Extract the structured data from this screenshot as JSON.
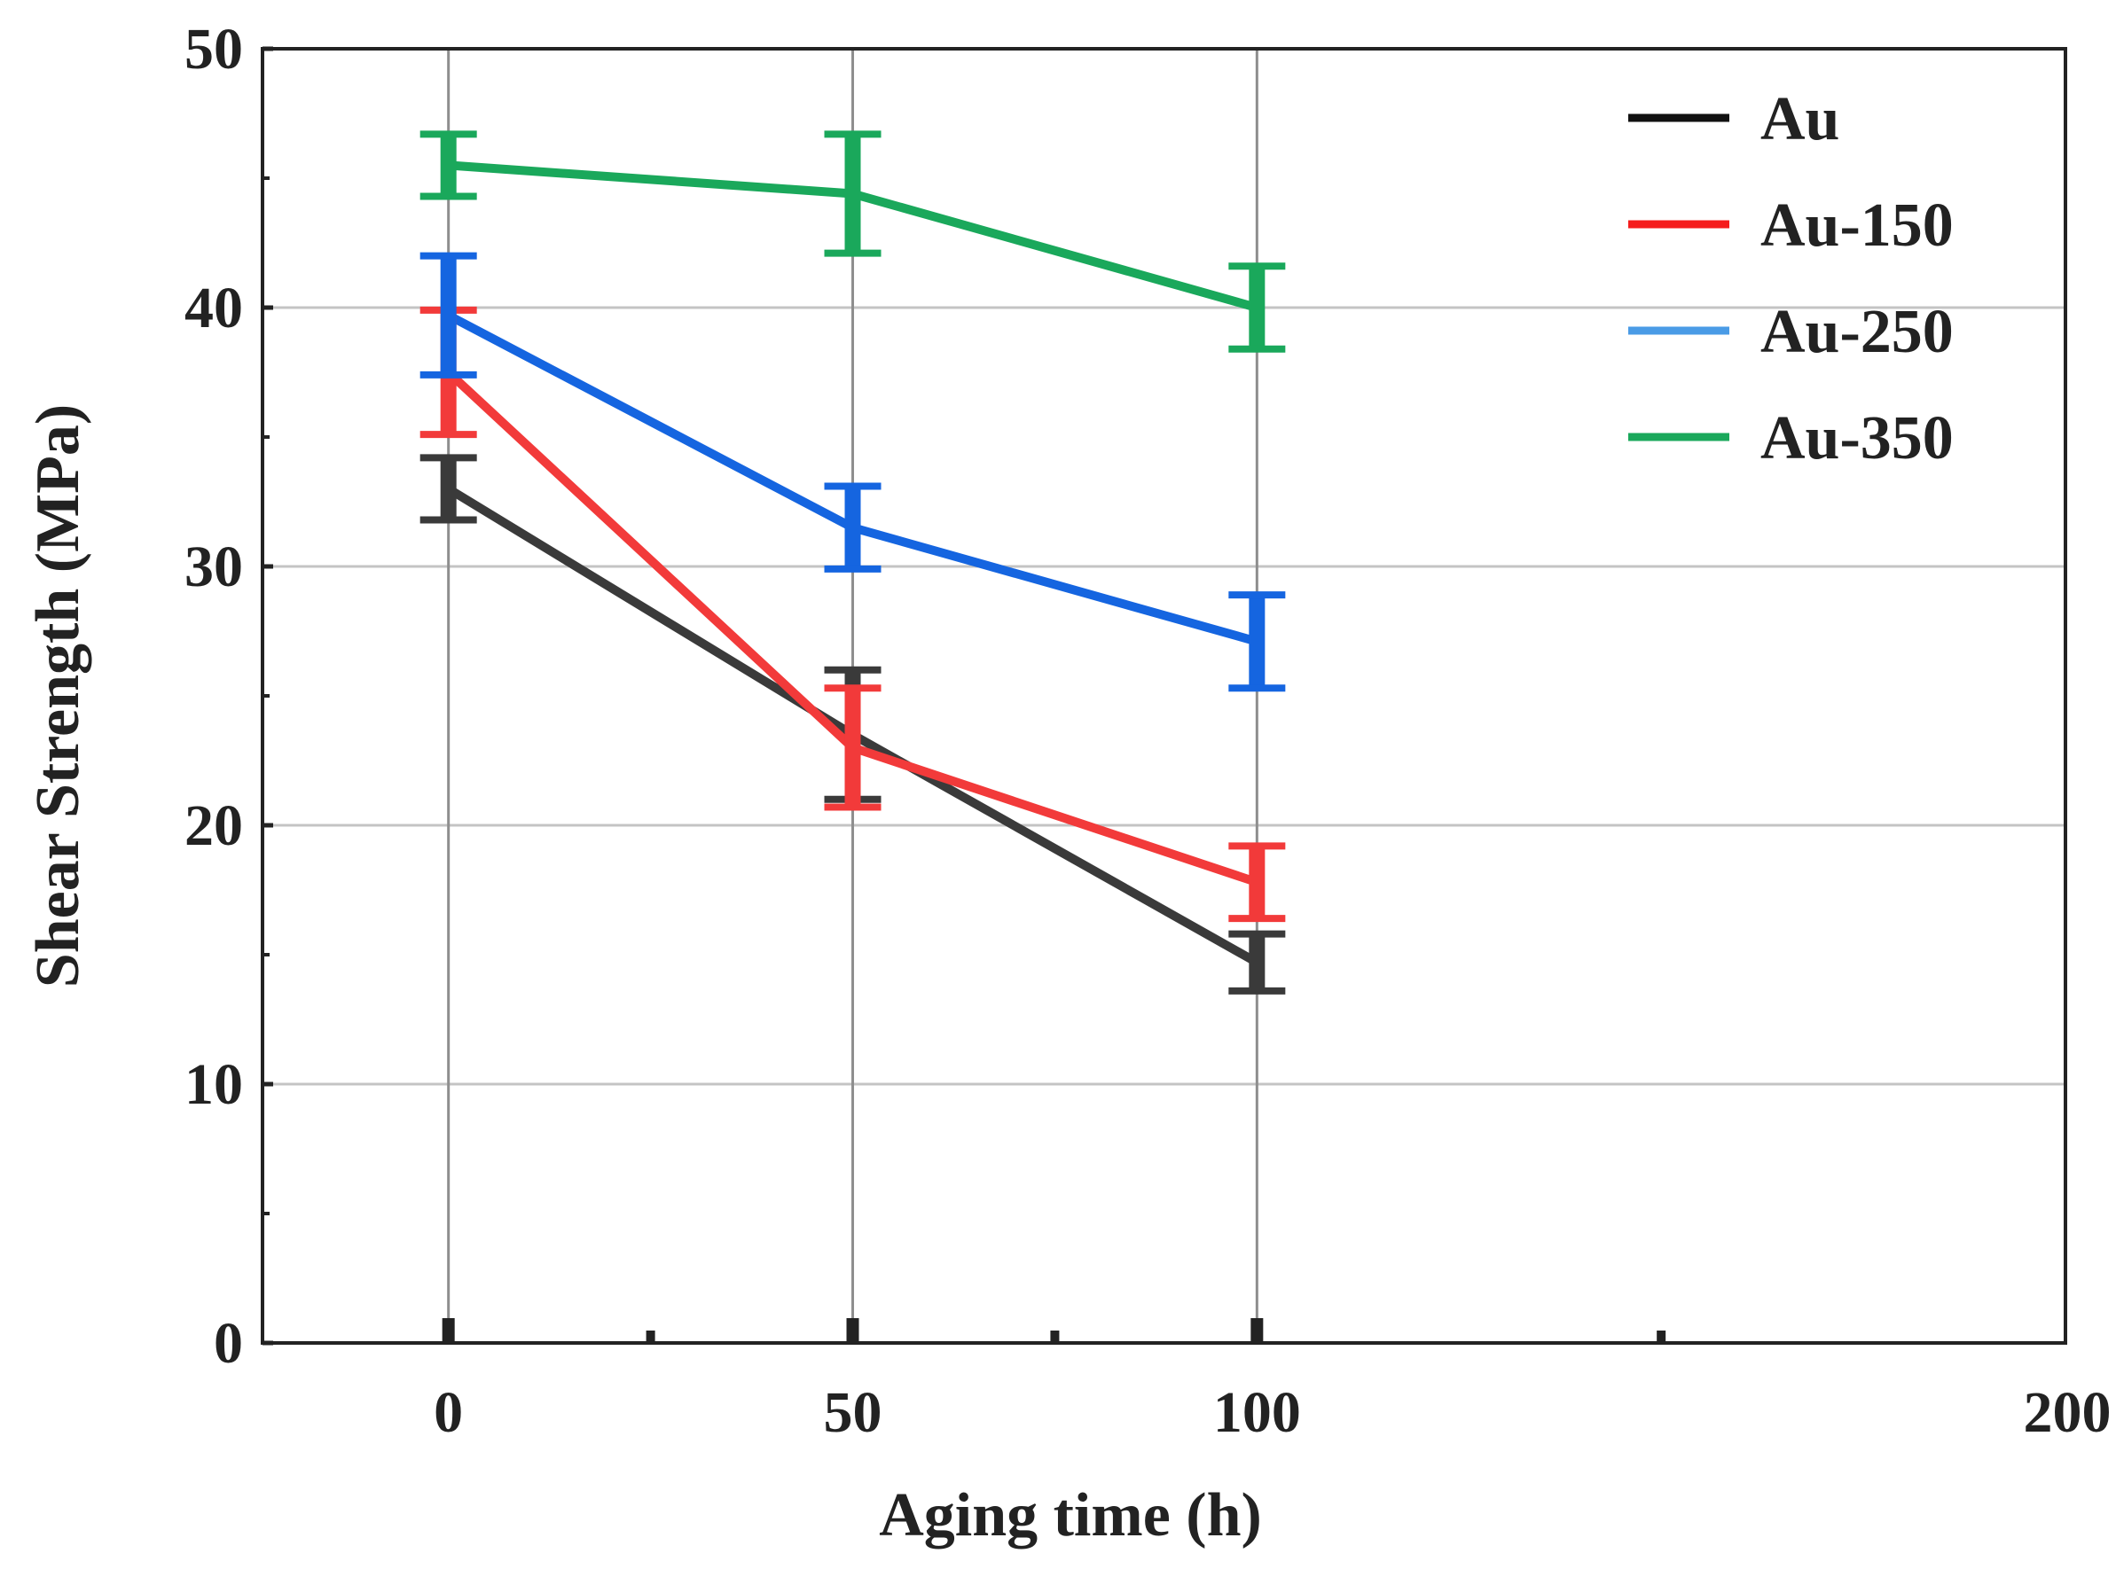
{
  "chart_data": {
    "type": "line",
    "xlabel": "Aging time (h)",
    "ylabel": "Shear Strength (MPa)",
    "xlim": [
      -23,
      200
    ],
    "ylim": [
      0,
      50
    ],
    "x_tick_labels": [
      "0",
      "50",
      "100",
      "200"
    ],
    "y_tick_labels": [
      "0",
      "10",
      "20",
      "30",
      "40",
      "50"
    ],
    "x": [
      0,
      50,
      100
    ],
    "grid": true,
    "legend_position": "top-right",
    "series": [
      {
        "name": "Au",
        "color": "#3a3a3a",
        "values": [
          33.0,
          23.5,
          14.7
        ],
        "errors": [
          1.2,
          2.5,
          1.1
        ]
      },
      {
        "name": "Au-150",
        "color": "#f23a3a",
        "values": [
          37.5,
          23.0,
          17.8
        ],
        "errors": [
          2.4,
          2.3,
          1.4
        ]
      },
      {
        "name": "Au-250",
        "color": "#1565e0",
        "values": [
          39.7,
          31.5,
          27.1
        ],
        "errors": [
          2.3,
          1.6,
          1.8
        ]
      },
      {
        "name": "Au-350",
        "color": "#1aa85b",
        "values": [
          45.5,
          44.4,
          40.0
        ],
        "errors": [
          1.2,
          2.3,
          1.6
        ]
      }
    ]
  }
}
